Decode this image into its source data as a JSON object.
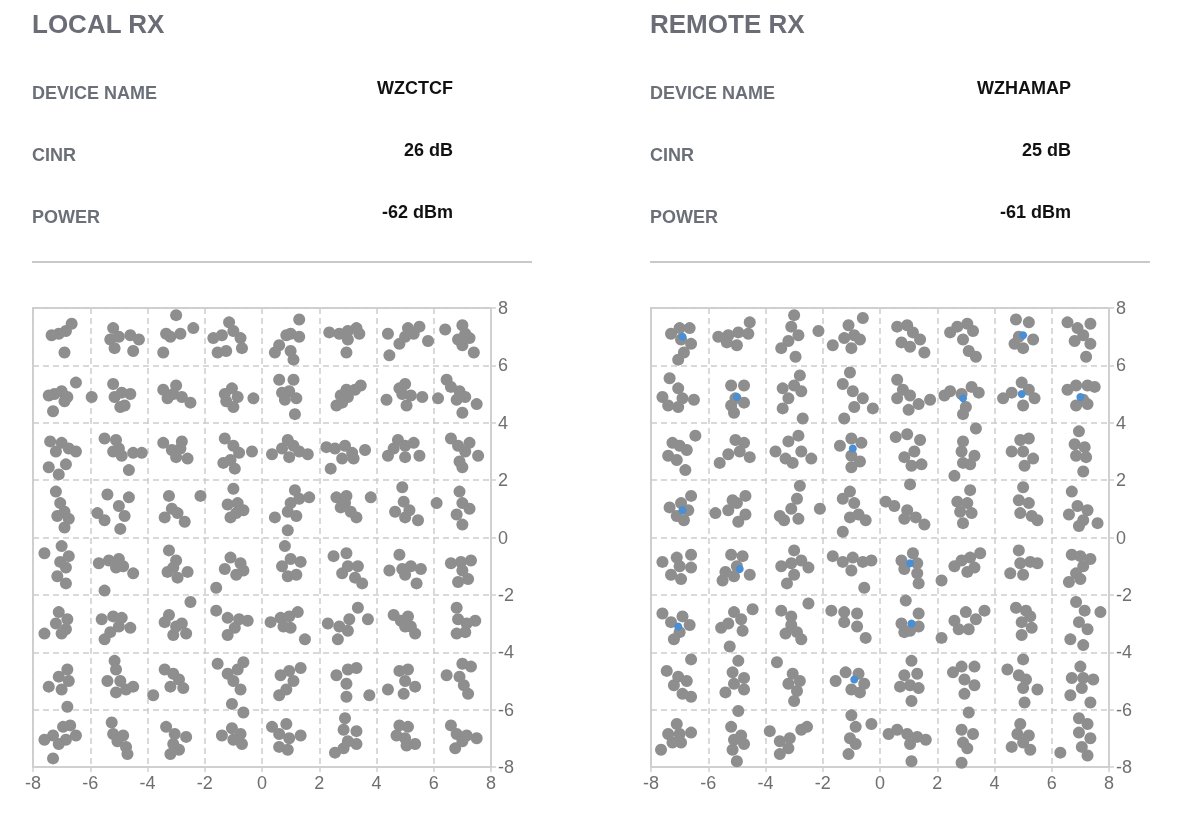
{
  "chart_data": [
    {
      "type": "scatter",
      "title": "LOCAL RX",
      "annotations": [
        "DEVICE NAME",
        "WZCTCF",
        "CINR",
        "26 dB",
        "POWER",
        "-62 dBm"
      ],
      "xlim": [
        -8,
        8
      ],
      "xticks": [
        -8,
        -6,
        -4,
        -2,
        0,
        2,
        4,
        6,
        8
      ],
      "ylim": [
        -8,
        8
      ],
      "yticks": [
        -8,
        -6,
        -4,
        -2,
        0,
        2,
        4,
        6,
        8
      ],
      "grid": true,
      "marker": "circle",
      "series": [
        {
          "color": "#8e8e8e",
          "x": [
            -7.1,
            -7.35,
            -6.85,
            -6.65,
            -6.9,
            -5.2,
            -5.3,
            -5,
            -5.15,
            -4.6,
            -4.3,
            -4.5,
            -3.2,
            -2.85,
            -3.35,
            -3,
            -2.4,
            -3.45,
            -1.15,
            -0.75,
            -1.4,
            -1.7,
            -1.55,
            -1.25,
            -0.7,
            -1,
            1,
            1.3,
            0.85,
            1.3,
            0.6,
            0.45,
            1,
            1.1,
            2.35,
            2.7,
            3,
            3.3,
            3.4,
            3,
            2.95,
            4.45,
            4.8,
            5,
            5.3,
            5.5,
            5.8,
            4.4,
            5.1,
            7,
            7.1,
            6.85,
            7.25,
            6.4,
            7.4,
            7,
            -7,
            -7.25,
            -6.8,
            -7.45,
            -6.5,
            -7.3,
            -6.9,
            -4.9,
            -5.15,
            -4.8,
            -5.2,
            -4.95,
            -5.95,
            -4.6,
            -3.45,
            -3.1,
            -2.8,
            -2.5,
            -3,
            -3.3,
            -1.05,
            -1.3,
            -0.85,
            -1,
            -0.3,
            -1.25,
            0.6,
            1.1,
            0.95,
            0.8,
            1.2,
            1.15,
            0.7,
            2.6,
            2.8,
            3,
            3.25,
            3.45,
            2.95,
            2.75,
            5,
            4.9,
            5.2,
            5.05,
            4.35,
            5.6,
            4.8,
            6.15,
            6.45,
            6.9,
            7.1,
            7.5,
            7,
            6.8,
            6.6,
            -7.4,
            -7,
            -6.75,
            -7.2,
            -6.5,
            -7.45,
            -7.1,
            -6.85,
            -5.5,
            -5.1,
            -5,
            -4.9,
            -4.5,
            -4.2,
            -4.65,
            -5.2,
            -3.45,
            -3.15,
            -2.85,
            -2.6,
            -3,
            -2.8,
            -1.3,
            -1,
            -0.8,
            -0.35,
            -1.1,
            -0.95,
            -1.35,
            0.35,
            0.7,
            0.9,
            1.1,
            1.3,
            1.6,
            0.95,
            2.25,
            2.55,
            2.9,
            3.15,
            3.6,
            2.8,
            2.4,
            3.2,
            4.4,
            4.75,
            5,
            5.3,
            5.5,
            5,
            4.6,
            6.6,
            6.85,
            7.1,
            7.55,
            6.9,
            7.25,
            7,
            -7.2,
            -7.05,
            -6.9,
            -7.15,
            -6.75,
            -6.9,
            -5.75,
            -5.5,
            -5.4,
            -5,
            -4.8,
            -4.95,
            -4.65,
            -3.25,
            -3.15,
            -2.95,
            -3.4,
            -2.7,
            -2.15,
            -1,
            -1.2,
            -0.85,
            -0.65,
            -1.1,
            -0.9,
            1.15,
            1,
            1.3,
            1.65,
            0.9,
            0.45,
            0.9,
            1.2,
            2.6,
            2.95,
            2.75,
            3.1,
            3.3,
            3.8,
            2.9,
            4.9,
            4.95,
            4.65,
            5.15,
            5.45,
            5,
            6.9,
            7,
            7.25,
            6.8,
            7,
            6.1,
            -7,
            -7.6,
            -7.05,
            -6.85,
            -7.15,
            -6.85,
            -6.75,
            -5.7,
            -5.35,
            -5,
            -4.85,
            -4.5,
            -5.5,
            -5.1,
            -3.25,
            -3,
            -3.3,
            -2.95,
            -2.6,
            -3.1,
            -1.1,
            -0.75,
            -1.3,
            -0.9,
            -0.65,
            -1.6,
            0.8,
            0.7,
            1,
            1.35,
            0.9,
            1.2,
            2.5,
            2.95,
            3,
            3.35,
            3.25,
            3.5,
            2.8,
            4.45,
            4.8,
            4.9,
            5.2,
            5.55,
            5.4,
            5,
            6.6,
            6.95,
            7.3,
            7,
            6.85,
            7.2,
            -7.1,
            -6.8,
            -7.2,
            -6.85,
            -7,
            -7.6,
            -5.6,
            -5.2,
            -4.9,
            -5,
            -4.6,
            -5.3,
            -5.5,
            -3.25,
            -3.4,
            -3,
            -2.8,
            -2.65,
            -3.1,
            -2.5,
            -1.6,
            -1.2,
            -0.8,
            -0.5,
            -0.95,
            -1.2,
            0.3,
            0.65,
            0.95,
            1.25,
            1,
            1.5,
            0.75,
            2.3,
            2.7,
            3.05,
            3.35,
            3.7,
            2.65,
            3,
            4.6,
            4.85,
            5.1,
            5,
            5.35,
            5.2,
            6.8,
            6.85,
            7.15,
            7.45,
            6.8,
            7.1,
            -6.8,
            -7.1,
            -6.75,
            -7.45,
            -7,
            -6.8,
            -5.15,
            -5.1,
            -5.4,
            -4.95,
            -4.75,
            -5.1,
            -4.5,
            -3.4,
            -3.1,
            -2.9,
            -3.2,
            -2.75,
            -3.8,
            -1.55,
            -1.2,
            -0.85,
            -1,
            -0.75,
            -1.05,
            -0.65,
            0.65,
            0.95,
            1.35,
            1.1,
            0.85,
            0.6,
            2.6,
            3,
            3.3,
            2.95,
            2.95,
            3.75,
            4.4,
            4.8,
            5.1,
            5,
            5.35,
            4.95,
            6.45,
            7,
            7.3,
            6.9,
            7.05,
            7.2,
            -7.6,
            -7.3,
            -6.95,
            -6.7,
            -6.85,
            -7.1,
            -7.3,
            -6.5,
            -5.25,
            -5.2,
            -4.85,
            -5.05,
            -4.75,
            -4.7,
            -3.35,
            -3.05,
            -2.65,
            -3.1,
            -3.2,
            -2.9,
            -1.4,
            -1.05,
            -0.75,
            -1,
            -0.7,
            -0.65,
            0.35,
            0.6,
            0.85,
            0.95,
            1.35,
            0.9,
            0.6,
            2.9,
            2.85,
            3.3,
            3,
            2.55,
            2.85,
            3.3,
            4.8,
            5.1,
            4.7,
            5,
            5.35,
            5.05,
            6.6,
            6.8,
            7.15,
            7.5,
            7,
            6.75
          ],
          "values": [
            7.1,
            7.05,
            7.2,
            7.45,
            6.45,
            7.3,
            6.9,
            7,
            6.6,
            7.05,
            6.9,
            6.5,
            7,
            7.1,
            7.1,
            7.75,
            7.3,
            6.45,
            7.5,
            6.95,
            7.05,
            6.95,
            6.45,
            6.5,
            6.6,
            7.2,
            7.1,
            7,
            7.05,
            7.6,
            6.7,
            6.45,
            6.5,
            6.2,
            7.15,
            7.1,
            7.2,
            7.3,
            7.1,
            6.9,
            6.45,
            6.35,
            6.75,
            7,
            7.1,
            7.35,
            6.85,
            7.1,
            7.3,
            7.4,
            7.1,
            6.9,
            6.95,
            7.25,
            6.45,
            6.7,
            5.1,
            5,
            4.9,
            4.95,
            5.4,
            4.4,
            4.75,
            5.05,
            4.9,
            4.6,
            5.35,
            4.55,
            4.9,
            5,
            5.15,
            5,
            4.9,
            4.7,
            5.3,
            4.85,
            5.2,
            5,
            4.9,
            4.55,
            4.85,
            4.75,
            5.5,
            5.5,
            5.1,
            4.8,
            4.85,
            4.3,
            5.05,
            4.6,
            4.7,
            4.9,
            5.15,
            5.3,
            5.15,
            4.95,
            5.35,
            5,
            4.95,
            4.6,
            4.8,
            4.9,
            5.2,
            4.85,
            5.5,
            5.1,
            4.9,
            4.65,
            4.35,
            4.8,
            5.25,
            3.35,
            3.3,
            3.1,
            3,
            3,
            2.45,
            2.2,
            2.55,
            3.45,
            3.4,
            3.1,
            2.85,
            2.95,
            2.95,
            2.35,
            3,
            3.3,
            3.05,
            3.1,
            2.75,
            2.8,
            3.35,
            3.45,
            3.2,
            2.95,
            3,
            2.7,
            2.4,
            2.6,
            2.9,
            3.1,
            3.4,
            3.2,
            3,
            2.9,
            2.8,
            3.15,
            3.1,
            3.2,
            2.95,
            3.05,
            2.75,
            2.4,
            2.75,
            2.85,
            3.4,
            3.2,
            3.3,
            2.85,
            2.8,
            3.1,
            3.45,
            3.2,
            3,
            2.85,
            2.65,
            3.3,
            2.45,
            1.6,
            1.2,
            0.9,
            0.75,
            0.65,
            0.35,
            0.85,
            0.6,
            1.5,
            1.1,
            0.75,
            0.3,
            1.4,
            1.45,
            1,
            0.85,
            0.7,
            0.55,
            1.45,
            1.7,
            1.15,
            1.2,
            0.95,
            0.7,
            0.85,
            1.65,
            1.2,
            1.35,
            1.4,
            0.9,
            0.7,
            0.25,
            0.75,
            1.4,
            1.45,
            1.05,
            0.9,
            0.7,
            1.4,
            1.2,
            1.75,
            1.25,
            0.9,
            0.95,
            0.6,
            0.7,
            1.6,
            1.2,
            1,
            0.8,
            0.45,
            1.2,
            -0.3,
            -0.55,
            -0.85,
            -1.05,
            -1.35,
            -1.6,
            -0.65,
            -0.9,
            -0.8,
            -0.75,
            -1,
            -1.25,
            -1.85,
            -1.05,
            -0.45,
            -0.8,
            -1.2,
            -1.4,
            -1.2,
            -1.05,
            -0.7,
            -0.9,
            -1.1,
            -1.3,
            -1.15,
            -1.75,
            -0.3,
            -1,
            -0.75,
            -0.85,
            -1.35,
            -1.3,
            -0.65,
            -0.55,
            -1,
            -1,
            -1.4,
            -1.6,
            -1.25,
            -1.15,
            -0.6,
            -1.1,
            -1,
            -1.1,
            -1.6,
            -1.3,
            -0.9,
            -0.85,
            -0.8,
            -1.15,
            -1.55,
            -1.45,
            -2.6,
            -2.85,
            -3,
            -3.2,
            -3.35,
            -3.35,
            -2.85,
            -2.75,
            -2.8,
            -3.1,
            -3.15,
            -3.3,
            -3.55,
            -2.7,
            -2.95,
            -3.1,
            -3,
            -3.35,
            -3.4,
            -2.25,
            -2.55,
            -2.8,
            -2.85,
            -2.9,
            -3.15,
            -3.4,
            -2.95,
            -2.8,
            -2.75,
            -2.6,
            -3.15,
            -3.55,
            -3.1,
            -3,
            -3.1,
            -2.85,
            -2.45,
            -2.85,
            -3.55,
            -3.25,
            -2.7,
            -2.9,
            -2.75,
            -3.1,
            -3.35,
            -3.1,
            -2.45,
            -2.85,
            -3,
            -2.9,
            -3.35,
            -3.3,
            -4.6,
            -4.85,
            -5,
            -5.2,
            -5.3,
            -5.9,
            -4.3,
            -4.6,
            -5,
            -5,
            -5.3,
            -5.4,
            -5.2,
            -4.6,
            -4.75,
            -4.95,
            -5.2,
            -5.25,
            -5.5,
            -4.4,
            -4.75,
            -4.6,
            -5,
            -5.3,
            -5.8,
            -4.35,
            -4.8,
            -4.65,
            -4.55,
            -5,
            -5.3,
            -5.5,
            -4.8,
            -4.6,
            -4.55,
            -5.1,
            -5.55,
            -5.5,
            -5.3,
            -4.65,
            -4.6,
            -5,
            -5.2,
            -5.45,
            -4.8,
            -4.4,
            -4.5,
            -4.85,
            -5.15,
            -5.45,
            -7.05,
            -6.9,
            -6.6,
            -6.55,
            -7.05,
            -7.2,
            -7.7,
            -6.9,
            -6.45,
            -6.85,
            -6.9,
            -7.1,
            -7.3,
            -7.55,
            -6.6,
            -6.85,
            -6.95,
            -7.2,
            -7.55,
            -7.4,
            -6.9,
            -6.65,
            -6.85,
            -7.05,
            -7.2,
            -6.1,
            -6.6,
            -6.85,
            -6.5,
            -7,
            -6.9,
            -7.4,
            -7.3,
            -6.3,
            -6.7,
            -6.75,
            -7.1,
            -7.5,
            -7.35,
            -7.2,
            -6.55,
            -6.6,
            -6.9,
            -7,
            -7.2,
            -7.25,
            -6.55,
            -6.85,
            -6.9,
            -7,
            -7.1,
            -7.35
          ]
        }
      ]
    },
    {
      "type": "scatter",
      "title": "REMOTE RX",
      "annotations": [
        "DEVICE NAME",
        "WZHAMAP",
        "CINR",
        "25 dB",
        "POWER",
        "-61 dBm"
      ],
      "xlim": [
        -8,
        8
      ],
      "xticks": [
        -8,
        -6,
        -4,
        -2,
        0,
        2,
        4,
        6,
        8
      ],
      "ylim": [
        -8,
        8
      ],
      "yticks": [
        -8,
        -6,
        -4,
        -2,
        0,
        2,
        4,
        6,
        8
      ],
      "grid": true,
      "marker": "circle",
      "series": [
        {
          "color": "#8e8e8e",
          "x": [
            -7.3,
            -7,
            -6.65,
            -6.95,
            -6.6,
            -6.85,
            -7.05,
            -5.65,
            -5.3,
            -4.95,
            -4.55,
            -4.6,
            -5,
            -5.35,
            -3,
            -3.1,
            -2.85,
            -3.2,
            -3.45,
            -2.95,
            -2.15,
            -1.1,
            -0.9,
            -1.25,
            -0.7,
            -1,
            -0.6,
            -1.65,
            0.6,
            0.95,
            1.15,
            0.75,
            1.05,
            1.55,
            1.4,
            2.45,
            2.7,
            3.05,
            3.25,
            2.9,
            3.1,
            3.35,
            4.75,
            5.2,
            4.85,
            5.35,
            5,
            4.7,
            6.55,
            6.9,
            7.35,
            7.1,
            6.8,
            7.35,
            7.2,
            -7.35,
            -7.05,
            -7.6,
            -6.9,
            -6.5,
            -7.05,
            -7.4,
            -5.2,
            -4.75,
            -5.05,
            -4.75,
            -5.2,
            -5.1,
            -3.4,
            -3,
            -2.75,
            -3.2,
            -3.4,
            -2.8,
            -2.7,
            -1.05,
            -1.3,
            -0.95,
            -0.6,
            -0.25,
            -0.9,
            -1.25,
            0.6,
            0.8,
            1.05,
            1.35,
            1.75,
            1,
            0.6,
            2.25,
            2.45,
            2.85,
            3.2,
            3.45,
            3,
            2.9,
            4.3,
            4.6,
            4.95,
            5.2,
            5.4,
            5,
            6.55,
            6.85,
            7.25,
            7.5,
            7.1,
            6.85,
            7.25,
            -7.25,
            -7,
            -6.75,
            -7.4,
            -7.1,
            -6.8,
            -6.45,
            -5.6,
            -5.3,
            -5.05,
            -4.9,
            -4.55,
            -4.75,
            -3.65,
            -3.2,
            -2.85,
            -2.75,
            -3.05,
            -2.4,
            -3.3,
            -1.4,
            -1,
            -0.65,
            -1,
            -0.7,
            -1,
            0.55,
            0.95,
            1.4,
            1.2,
            0.85,
            1.1,
            1.45,
            2.9,
            2.85,
            3.3,
            2.9,
            3.15,
            3.35,
            2.6,
            4.6,
            4.9,
            5.2,
            5,
            5.35,
            5.05,
            6.95,
            6.8,
            7.15,
            6.85,
            7.2,
            7.1,
            -7.35,
            -6.95,
            -6.6,
            -6.7,
            -7.1,
            -6.85,
            -5.75,
            -5.3,
            -5,
            -4.7,
            -4.7,
            -4.95,
            -5.15,
            -2.8,
            -2.9,
            -3.1,
            -3.35,
            -2.85,
            -3.5,
            -2.1,
            -1.05,
            -0.9,
            -1.3,
            -0.75,
            -0.5,
            -1.05,
            -1.3,
            0.2,
            0.5,
            0.95,
            1.25,
            1.55,
            0.85,
            1.05,
            2.7,
            3.05,
            2.8,
            3.2,
            2.9,
            3.15,
            5,
            4.85,
            5.2,
            4.9,
            5.3,
            5.5,
            6.7,
            6.9,
            7.25,
            6.6,
            7.1,
            7.6,
            6.95,
            -7.6,
            -7.1,
            -6.6,
            -7,
            -6.6,
            -7.3,
            -6.95,
            -5.2,
            -4.8,
            -5,
            -4.55,
            -5.1,
            -5.5,
            -5.4,
            -3,
            -2.75,
            -3.1,
            -3.45,
            -2.5,
            -3,
            -3.25,
            -1.65,
            -1.3,
            -0.95,
            -0.6,
            -0.3,
            -1,
            -0.55,
            0.75,
            1.15,
            1.3,
            0.85,
            1.3,
            1.35,
            2.6,
            2.85,
            3.15,
            3.5,
            3.05,
            3.3,
            2.15,
            4.85,
            4.9,
            5.25,
            4.55,
            5,
            5.5,
            6.7,
            7,
            7.35,
            7.1,
            6.85,
            6.6,
            7,
            -7.6,
            -7.3,
            -6.9,
            -6.65,
            -7,
            -7.2,
            -5.1,
            -5.3,
            -4.85,
            -4.8,
            -5.55,
            -4.45,
            -5.25,
            -3.45,
            -3.1,
            -3.1,
            -2.9,
            -2.75,
            -3.3,
            -2.5,
            -1.7,
            -1.25,
            -0.8,
            -1.25,
            -0.8,
            -0.5,
            0.9,
            1.35,
            0.75,
            1.05,
            1.35,
            0.85,
            2.6,
            3,
            3.35,
            3.1,
            2.75,
            3.65,
            2.15,
            4.75,
            5.1,
            4.95,
            5.3,
            4.95,
            5.25,
            6.85,
            7.15,
            6.95,
            7.25,
            6.65,
            7.1,
            7.7,
            -7.45,
            -7.05,
            -6.75,
            -7.2,
            -6.9,
            -6.6,
            -6.6,
            -4.95,
            -5.15,
            -4.75,
            -5.1,
            -4.75,
            -5.4,
            -3.6,
            -3.05,
            -2.8,
            -3.2,
            -2.9,
            -3,
            -1.55,
            -1.2,
            -0.75,
            -0.55,
            -1,
            -0.7,
            1.1,
            0.85,
            1.3,
            0.7,
            1.05,
            1.35,
            1.1,
            2.55,
            2.85,
            3.3,
            2.95,
            3.3,
            2.95,
            4.45,
            4.85,
            5.1,
            5.5,
            5,
            5,
            5.05,
            7,
            6.7,
            7.1,
            7.45,
            7.05,
            6.65,
            7.35,
            -7.1,
            -7.4,
            -7,
            -6.6,
            -6.95,
            -7.25,
            -7.65,
            -4.95,
            -5.2,
            -4.85,
            -5.1,
            -4.75,
            -5.15,
            -5,
            -3.85,
            -3.5,
            -3.15,
            -2.75,
            -2.55,
            -3.2,
            -3.5,
            -1,
            -0.85,
            -1.05,
            -0.85,
            -1.1,
            -0.3,
            0.3,
            0.6,
            0.95,
            1.3,
            1.6,
            1.05,
            1.1,
            3.1,
            2.85,
            3.25,
            2.9,
            3.05,
            2.85,
            4.9,
            4.8,
            5.2,
            5,
            4.6,
            5.25,
            6.95,
            7.25,
            6.95,
            7.35,
            7.05,
            6.3,
            7.25
          ],
          "values": [
            7.1,
            7.3,
            7.3,
            6.9,
            6.75,
            6.45,
            6.2,
            7,
            7.05,
            7.15,
            7.5,
            7.1,
            6.7,
            6.8,
            7.75,
            7.35,
            7.05,
            6.85,
            6.6,
            6.3,
            7.2,
            7.4,
            7.05,
            6.95,
            6.9,
            6.6,
            7.65,
            6.7,
            7.35,
            7.4,
            7.15,
            6.8,
            6.65,
            6.45,
            6.9,
            7.15,
            7.35,
            7.45,
            7.2,
            6.9,
            6.5,
            6.3,
            7.6,
            7.5,
            7,
            6.9,
            6.6,
            6.75,
            7.5,
            7.3,
            7.45,
            7.05,
            6.85,
            6.75,
            6.3,
            5.55,
            5.2,
            4.9,
            4.85,
            4.8,
            4.55,
            4.6,
            5.3,
            5.3,
            4.85,
            4.7,
            4.6,
            4.35,
            5.2,
            5.3,
            5.1,
            4.85,
            4.5,
            5.65,
            4.15,
            5.75,
            5.35,
            5.1,
            4.85,
            4.5,
            4.55,
            4.15,
            5.5,
            5.15,
            4.95,
            4.65,
            4.8,
            4.45,
            4.85,
            4.95,
            5.1,
            5,
            5.25,
            5.05,
            4.55,
            4.3,
            4.85,
            5.05,
            5.4,
            5.15,
            4.85,
            4.6,
            5.15,
            5.3,
            5.3,
            5.25,
            4.8,
            4.6,
            4.65,
            3.3,
            3.2,
            3.05,
            2.85,
            2.7,
            2.35,
            3.55,
            2.6,
            2.9,
            3.4,
            3,
            2.8,
            3.3,
            3,
            3.35,
            3.55,
            3,
            2.6,
            2.75,
            2.75,
            3.2,
            3.45,
            3.3,
            2.85,
            2.65,
            2.45,
            3.5,
            3.6,
            3.4,
            3,
            2.8,
            2.5,
            2.55,
            3.35,
            3,
            2.85,
            2.6,
            2.55,
            3.8,
            2.15,
            3,
            3.4,
            3.45,
            3,
            2.75,
            2.5,
            3.7,
            3.25,
            3.15,
            2.85,
            2.8,
            2.3,
            1.05,
            1.2,
            1.45,
            0.95,
            0.75,
            0.6,
            0.85,
            0.95,
            1.2,
            1.45,
            0.8,
            0.55,
            1.3,
            1.8,
            1.35,
            1,
            0.6,
            0.65,
            0.75,
            1,
            1.6,
            1.2,
            1.35,
            0.8,
            0.6,
            0.7,
            0.2,
            1.25,
            1.1,
            0.95,
            0.7,
            0.45,
            0.65,
            1.85,
            1.25,
            1.2,
            0.9,
            0.85,
            0.5,
            1.65,
            1.75,
            1.3,
            1.2,
            0.85,
            0.75,
            0.6,
            1.6,
            1.1,
            0.95,
            0.8,
            0.6,
            0.5,
            0.4,
            -0.85,
            -0.7,
            -0.6,
            -1,
            -1.05,
            -1.3,
            -1.45,
            -0.6,
            -0.65,
            -1,
            -1.3,
            -1.35,
            -1.5,
            -1.2,
            -0.45,
            -0.8,
            -0.9,
            -1,
            -1.05,
            -1.3,
            -1.6,
            -0.65,
            -0.85,
            -0.7,
            -0.85,
            -0.8,
            -1.15,
            -1.75,
            -0.8,
            -0.55,
            -0.9,
            -1.1,
            -1.25,
            -1.6,
            -1,
            -0.8,
            -0.7,
            -0.55,
            -1.2,
            -1.05,
            -1.5,
            -0.45,
            -0.9,
            -0.85,
            -1.25,
            -1.3,
            -0.9,
            -0.6,
            -0.65,
            -0.75,
            -1,
            -1.25,
            -1.55,
            -1.45,
            -2.65,
            -2.95,
            -2.75,
            -3.05,
            -3.3,
            -3.55,
            -2.6,
            -3,
            -2.85,
            -3.25,
            -3.15,
            -2.5,
            -3.8,
            -2.55,
            -2.75,
            -3.05,
            -3.3,
            -3.55,
            -3.35,
            -2.3,
            -2.55,
            -2.6,
            -2.65,
            -2.95,
            -3.1,
            -3.5,
            -2.2,
            -2.65,
            -3,
            -3.25,
            -3.1,
            -3.3,
            -2.9,
            -2.6,
            -2.85,
            -3.2,
            -3.2,
            -2.55,
            -3.5,
            -2.45,
            -2.55,
            -2.95,
            -3.15,
            -3.4,
            -2.75,
            -2.25,
            -2.55,
            -2.95,
            -3.2,
            -3.55,
            -3.75,
            -2.6,
            -4.65,
            -4.85,
            -5,
            -5.15,
            -5.45,
            -5.55,
            -4.25,
            -4.3,
            -4.7,
            -4.9,
            -5.1,
            -5.3,
            -5.4,
            -4.35,
            -4.75,
            -5,
            -5.1,
            -5.35,
            -5.7,
            -5,
            -4.7,
            -4.75,
            -5.1,
            -5.3,
            -5.4,
            -4.3,
            -4.8,
            -4.75,
            -5.2,
            -5.15,
            -5.25,
            -5.7,
            -4.7,
            -4.5,
            -4.5,
            -4.95,
            -5.15,
            -5.45,
            -4.6,
            -4.8,
            -4.95,
            -5.3,
            -5.25,
            -4.25,
            -5.75,
            -4.5,
            -4.9,
            -4.9,
            -4.95,
            -5.25,
            -5.5,
            -5.75,
            -6.5,
            -6.85,
            -6.85,
            -6.8,
            -7.15,
            -7.15,
            -7.4,
            -6.05,
            -6.6,
            -6.9,
            -7.05,
            -7.2,
            -7.4,
            -7.8,
            -6.75,
            -7.1,
            -7,
            -6.7,
            -6.6,
            -7.35,
            -7.55,
            -6.2,
            -6.6,
            -7,
            -7.2,
            -7.55,
            -6.5,
            -6.85,
            -6.7,
            -6.85,
            -6.95,
            -7.05,
            -7.2,
            -7.8,
            -6.1,
            -6.7,
            -6.85,
            -7.15,
            -7.35,
            -7.85,
            -6.5,
            -6.85,
            -6.9,
            -7.15,
            -7.3,
            -7.4,
            -6.3,
            -6.5,
            -6.8,
            -7,
            -7.3,
            -7.5,
            -7.6
          ]
        },
        {
          "color": "#4a8fd4",
          "x": [
            -6.9,
            5,
            -5,
            2.9,
            4.95,
            7,
            -0.95,
            -6.9,
            -4.9,
            1.05,
            -7.05,
            1.1,
            -0.9
          ],
          "values": [
            7,
            7.05,
            4.9,
            4.85,
            5,
            4.9,
            3.1,
            0.95,
            -1.1,
            -0.9,
            -3.1,
            -3,
            -4.95
          ]
        }
      ]
    }
  ]
}
